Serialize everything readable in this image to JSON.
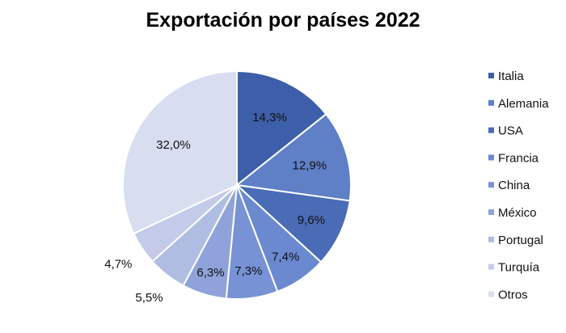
{
  "chart_data": {
    "type": "pie",
    "title": "Exportación por países 2022",
    "categories": [
      "Italia",
      "Alemania",
      "USA",
      "Francia",
      "China",
      "México",
      "Portugal",
      "Turquía",
      "Otros"
    ],
    "values": [
      14.3,
      12.9,
      9.6,
      7.4,
      7.3,
      6.3,
      5.5,
      4.7,
      32.0
    ],
    "value_labels": [
      "14,3%",
      "12,9%",
      "9,6%",
      "7,4%",
      "7,3%",
      "6,3%",
      "5,5%",
      "4,7%",
      "32,0%"
    ],
    "colors": [
      "#3d5ea8",
      "#5f7fc7",
      "#4a6bb5",
      "#6a89cf",
      "#7892d6",
      "#8fa3da",
      "#b0bde3",
      "#c3cbe8",
      "#d8ddf0"
    ],
    "legend_position": "right",
    "start_angle": "top, clockwise"
  }
}
